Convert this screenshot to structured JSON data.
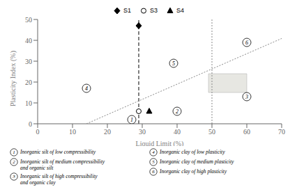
{
  "chart_data": {
    "type": "scatter",
    "xlabel": "Liquid Limit (%)",
    "ylabel": "Plasticity Index (%)",
    "xlim": [
      0,
      70
    ],
    "ylim": [
      0,
      50
    ],
    "xticks": [
      0,
      10,
      20,
      30,
      40,
      50,
      60,
      70
    ],
    "yticks": [
      0,
      10,
      20,
      30,
      40,
      50
    ],
    "grid": false,
    "series": [
      {
        "name": "S1",
        "x": [
          29
        ],
        "values": [
          47
        ],
        "marker": "diamond",
        "color": "#000000"
      },
      {
        "name": "S3",
        "x": [
          29
        ],
        "values": [
          6
        ],
        "marker": "open_circle",
        "color": "#000000"
      },
      {
        "name": "S4",
        "x": [
          32
        ],
        "values": [
          6
        ],
        "marker": "triangle",
        "color": "#000000"
      }
    ],
    "lines": [
      {
        "x": [
          14,
          70
        ],
        "values": [
          0,
          40.88
        ],
        "color": "#888888",
        "line_style": "dotted"
      }
    ],
    "vlines": [
      {
        "x": 29,
        "color": "#000000",
        "line_style": "dashed"
      },
      {
        "x": 50,
        "color": "#888888",
        "line_style": "dotted"
      }
    ],
    "regions": [
      {
        "x": [
          49,
          60
        ],
        "y": [
          15,
          24
        ],
        "color": "#ddddd5"
      }
    ],
    "annotations": [
      {
        "text": "1",
        "x": 27,
        "y": 2
      },
      {
        "text": "2",
        "x": 40,
        "y": 6
      },
      {
        "text": "3",
        "x": 60,
        "y": 13
      },
      {
        "text": "4",
        "x": 14,
        "y": 17
      },
      {
        "text": "5",
        "x": 39,
        "y": 29
      },
      {
        "text": "6",
        "x": 60,
        "y": 39
      }
    ],
    "zone_legend": [
      {
        "num": "1",
        "text": "Inorganic silt of low compressibility"
      },
      {
        "num": "2",
        "text": "Inorganic silt of medium compressibility\nand organic silt"
      },
      {
        "num": "3",
        "text": "Inorganic silt of high compressibility\nand organic clay"
      },
      {
        "num": "4",
        "text": "Inorganic clay of low plasticity"
      },
      {
        "num": "5",
        "text": "Inorganic clay of medium plasticity"
      },
      {
        "num": "6",
        "text": "Inorganic clay of high plasticity"
      }
    ]
  }
}
